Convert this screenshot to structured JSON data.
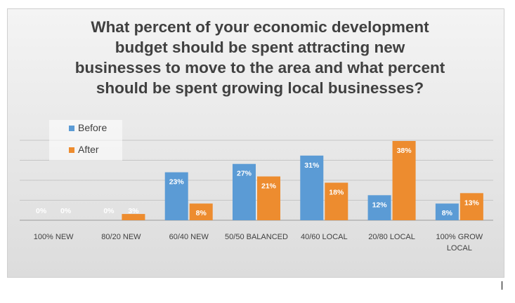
{
  "chart_data": {
    "type": "bar",
    "title_lines": [
      "What percent of your economic development",
      "budget should be spent attracting new",
      "businesses to move to the area and what percent",
      "should be spent growing local businesses?"
    ],
    "categories": [
      [
        "100% NEW"
      ],
      [
        "80/20 NEW"
      ],
      [
        "60/40 NEW"
      ],
      [
        "50/50 BALANCED"
      ],
      [
        "40/60 LOCAL"
      ],
      [
        "20/80 LOCAL"
      ],
      [
        "100% GROW",
        "LOCAL"
      ]
    ],
    "series": [
      {
        "name": "Before",
        "color": "#5b9bd5",
        "values": [
          0,
          0,
          23,
          27,
          31,
          12,
          8
        ],
        "labels": [
          "0%",
          "0%",
          "23%",
          "27%",
          "31%",
          "12%",
          "8%"
        ]
      },
      {
        "name": "After",
        "color": "#ed8c2f",
        "values": [
          0,
          3,
          8,
          21,
          18,
          38,
          13
        ],
        "labels": [
          "0%",
          "3%",
          "8%",
          "21%",
          "18%",
          "38%",
          "13%"
        ]
      }
    ],
    "ylim": [
      0,
      40
    ],
    "grid": true,
    "legend_position": "top-left"
  }
}
